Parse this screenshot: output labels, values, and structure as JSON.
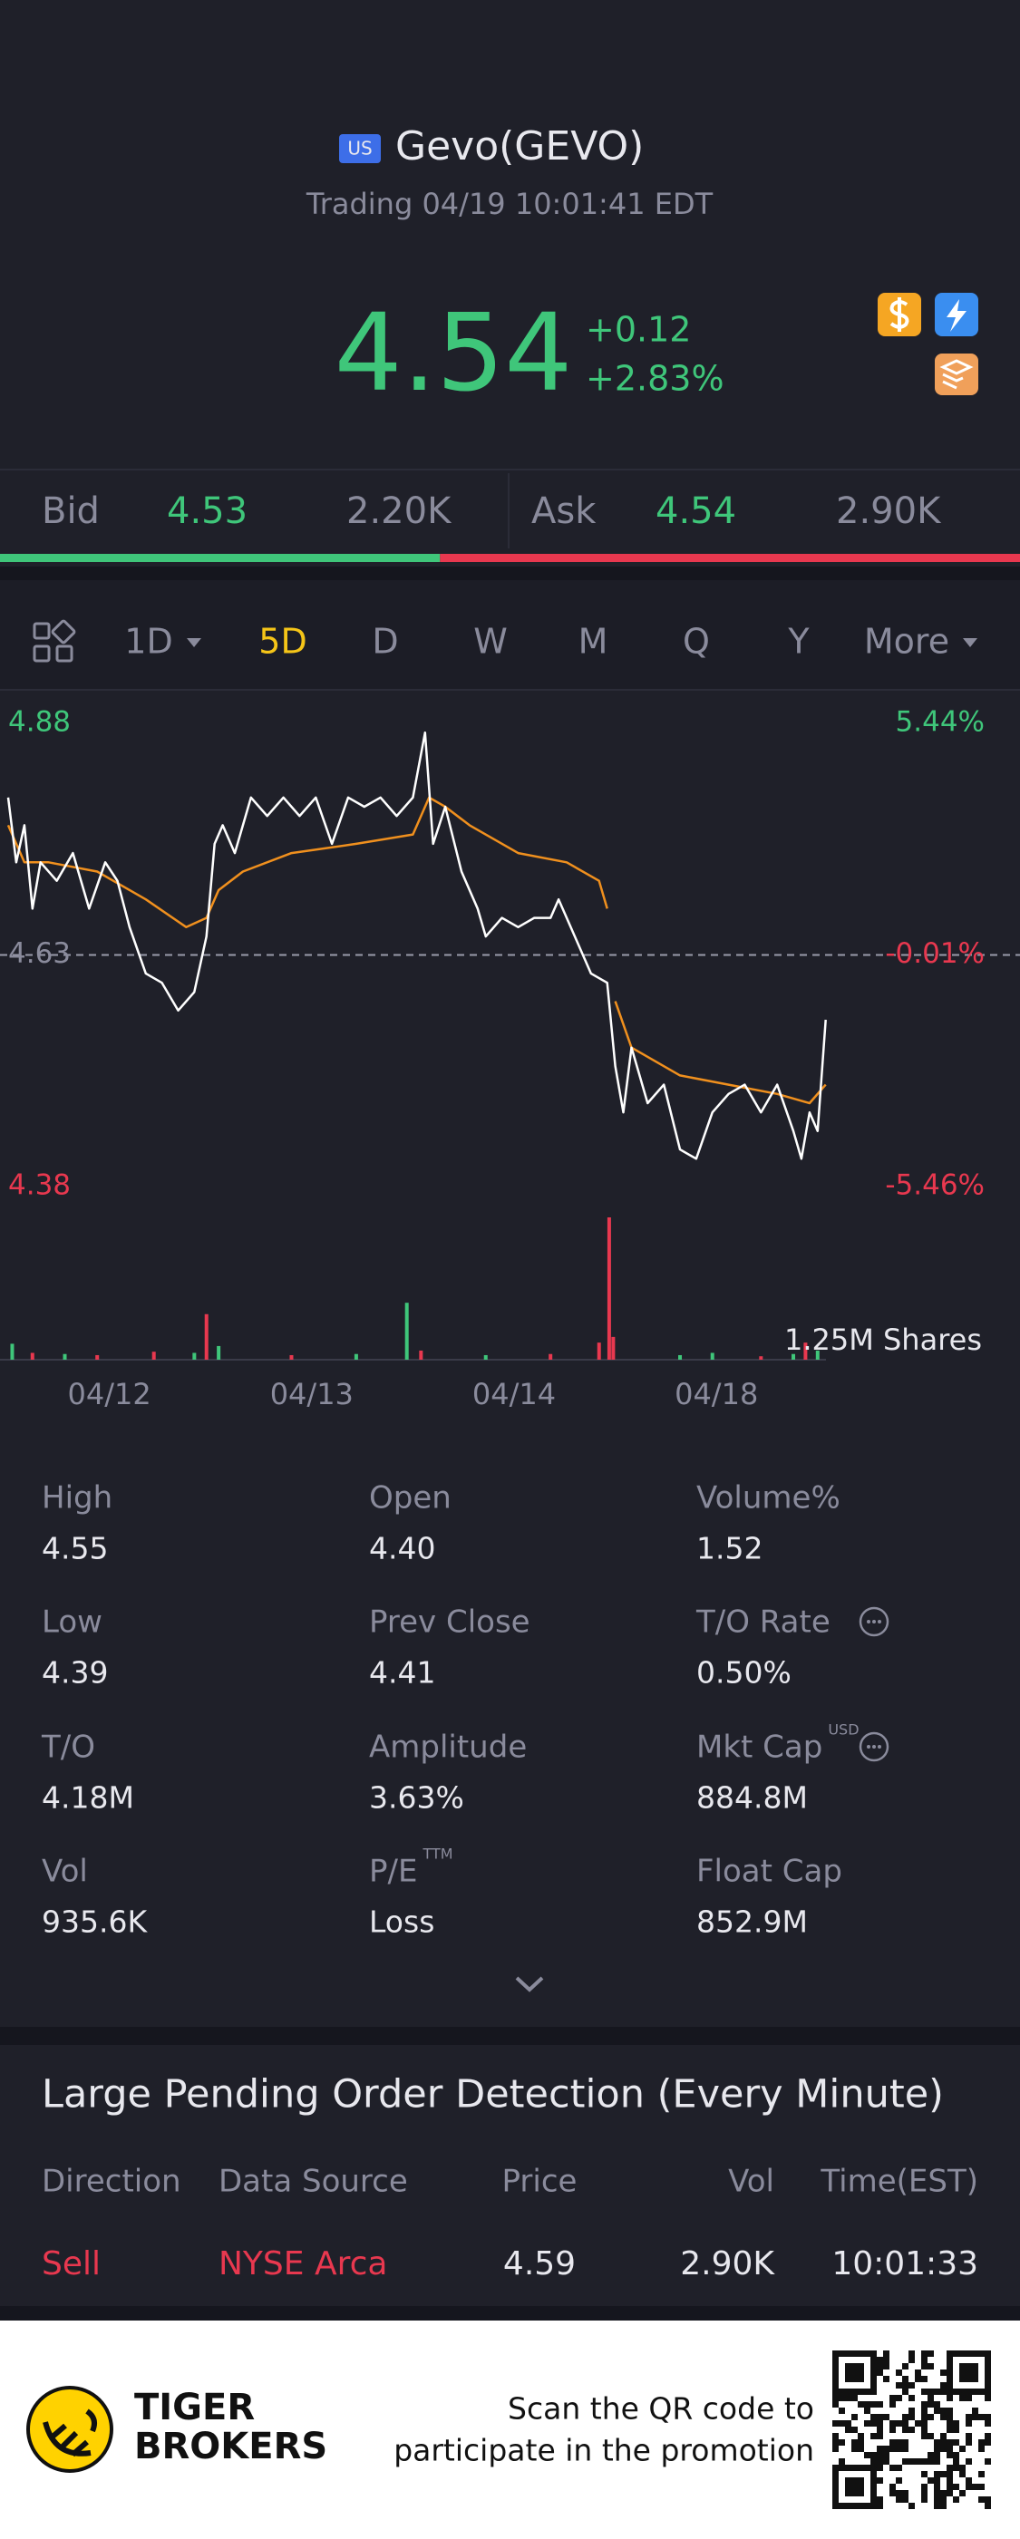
{
  "header": {
    "badge": "US",
    "title": "Gevo(GEVO)",
    "status": "Trading 04/19 10:01:41 EDT"
  },
  "quote": {
    "price": "4.54",
    "change": "+0.12",
    "change_pct": "+2.83%"
  },
  "bid_ask": {
    "bid_label": "Bid",
    "bid": "4.53",
    "bid_size": {
      "value": 2200,
      "label": "2.20K"
    },
    "ask_label": "Ask",
    "ask": "4.54",
    "ask_size": {
      "value": 2900,
      "label": "2.90K"
    }
  },
  "tabs": {
    "items": [
      "1D",
      "5D",
      "D",
      "W",
      "M",
      "Q",
      "Y",
      "More"
    ],
    "active": 1
  },
  "chart_data": [
    {
      "type": "line",
      "xlim": [
        0,
        5
      ],
      "ylim": [
        4.38,
        4.88
      ],
      "yticks": [
        4.88,
        4.63,
        4.38
      ],
      "y2lim": [
        -5.46,
        5.44
      ],
      "y2ticks": [
        {
          "value": 5.44,
          "label": "5.44%"
        },
        {
          "value": -0.01,
          "label": "-0.01%"
        },
        {
          "value": -5.46,
          "label": "-5.46%"
        }
      ],
      "series": [
        {
          "color": "#ffffff",
          "x": [
            0,
            0.04,
            0.08,
            0.12,
            0.16,
            0.24,
            0.32,
            0.4,
            0.48,
            0.54,
            0.6,
            0.68,
            0.76,
            0.84,
            0.92,
            0.98,
            1.02,
            1.06,
            1.12,
            1.2,
            1.28,
            1.36,
            1.44,
            1.52,
            1.6,
            1.68,
            1.76,
            1.84,
            1.92,
            2,
            2.06,
            2.1,
            2.16,
            2.24,
            2.32,
            2.36,
            2.44,
            2.52,
            2.6,
            2.68,
            2.72,
            2.8,
            2.88,
            2.96,
            3,
            3.04,
            3.08,
            3.16,
            3.24,
            3.32,
            3.4,
            3.48,
            3.56,
            3.64,
            3.72,
            3.8,
            3.88,
            3.92,
            3.96,
            4,
            4.04
          ],
          "values": [
            4.8,
            4.73,
            4.77,
            4.68,
            4.73,
            4.71,
            4.74,
            4.68,
            4.73,
            4.71,
            4.66,
            4.61,
            4.6,
            4.57,
            4.59,
            4.65,
            4.75,
            4.77,
            4.74,
            4.8,
            4.78,
            4.8,
            4.78,
            4.8,
            4.75,
            4.8,
            4.79,
            4.8,
            4.78,
            4.8,
            4.87,
            4.75,
            4.79,
            4.72,
            4.68,
            4.65,
            4.67,
            4.66,
            4.67,
            4.67,
            4.69,
            4.65,
            4.61,
            4.6,
            4.51,
            4.46,
            4.53,
            4.47,
            4.49,
            4.42,
            4.41,
            4.46,
            4.48,
            4.49,
            4.46,
            4.49,
            4.44,
            4.41,
            4.46,
            4.44,
            4.56
          ]
        },
        {
          "color": "#f0901e",
          "x": [
            0,
            0.08,
            0.2,
            0.44,
            0.68,
            0.88,
            0.98,
            1.04,
            1.16,
            1.4,
            1.72,
            2,
            2.08,
            2.16,
            2.28,
            2.52,
            2.76,
            2.92,
            2.96,
            2.98,
            3,
            3.08,
            3.32,
            3.56,
            3.8,
            3.96,
            4.04
          ],
          "values": [
            4.77,
            4.73,
            4.73,
            4.72,
            4.69,
            4.66,
            4.67,
            4.7,
            4.72,
            4.74,
            4.75,
            4.76,
            4.8,
            4.79,
            4.77,
            4.74,
            4.73,
            4.71,
            4.68,
            null,
            4.58,
            4.53,
            4.5,
            4.49,
            4.48,
            4.47,
            4.49
          ]
        }
      ]
    },
    {
      "type": "bar",
      "label": "1.25M Shares",
      "xlim": [
        0,
        5
      ],
      "ylim": [
        0,
        1250000
      ],
      "xticks": [
        {
          "value": 0.5,
          "label": "04/12"
        },
        {
          "value": 1.5,
          "label": "04/13"
        },
        {
          "value": 2.5,
          "label": "04/14"
        },
        {
          "value": 3.5,
          "label": "04/18"
        }
      ],
      "x": [
        0.02,
        0.12,
        0.28,
        0.44,
        0.72,
        0.92,
        0.98,
        1.04,
        1.4,
        1.72,
        1.97,
        2.04,
        2.36,
        2.68,
        2.92,
        2.97,
        2.99,
        3.32,
        3.48,
        3.72,
        3.88,
        3.94,
        4.0
      ],
      "values": [
        140000,
        60000,
        50000,
        40000,
        70000,
        60000,
        400000,
        120000,
        40000,
        50000,
        500000,
        80000,
        40000,
        50000,
        150000,
        1250000,
        200000,
        40000,
        60000,
        30000,
        50000,
        150000,
        80000
      ],
      "colors": [
        "#3fc67a",
        "#e8384f",
        "#3fc67a",
        "#e8384f",
        "#e8384f",
        "#3fc67a",
        "#e8384f",
        "#3fc67a",
        "#e8384f",
        "#3fc67a",
        "#3fc67a",
        "#e8384f",
        "#3fc67a",
        "#e8384f",
        "#e8384f",
        "#e8384f",
        "#e8384f",
        "#3fc67a",
        "#3fc67a",
        "#e8384f",
        "#3fc67a",
        "#e8384f",
        "#3fc67a"
      ]
    }
  ],
  "stats": [
    {
      "label": "High",
      "value": "4.55"
    },
    {
      "label": "Open",
      "value": "4.40"
    },
    {
      "label": "Volume%",
      "value": "1.52"
    },
    {
      "label": "Low",
      "value": "4.39"
    },
    {
      "label": "Prev Close",
      "value": "4.41"
    },
    {
      "label": "T/O Rate",
      "value": "0.50%",
      "info": true
    },
    {
      "label": "T/O",
      "value": "4.18M"
    },
    {
      "label": "Amplitude",
      "value": "3.63%"
    },
    {
      "label": "Mkt Cap",
      "value": "884.8M",
      "sup": "USD",
      "info": true
    },
    {
      "label": "Vol",
      "value": "935.6K"
    },
    {
      "label": "P/E",
      "value": "Loss",
      "sup": "TTM"
    },
    {
      "label": "Float Cap",
      "value": "852.9M"
    }
  ],
  "pending": {
    "title": "Large Pending Order Detection (Every Minute)",
    "headers": [
      "Direction",
      "Data Source",
      "Price",
      "Vol",
      "Time(EST)"
    ],
    "rows": [
      [
        "Sell",
        "NYSE Arca",
        "4.59",
        "2.90K",
        "10:01:33"
      ]
    ]
  },
  "footer": {
    "brand": [
      "TIGER",
      "BROKERS"
    ],
    "promo": [
      "Scan the QR code to",
      "participate in the promotion"
    ]
  }
}
